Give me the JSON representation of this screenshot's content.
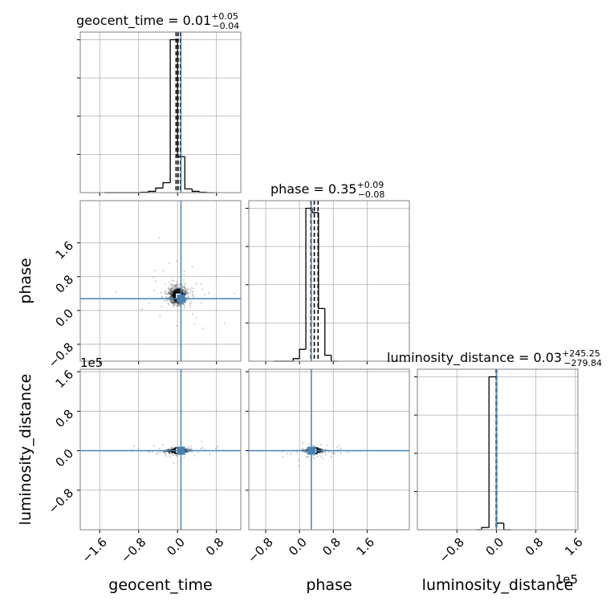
{
  "chart_data": {
    "type": "scatter",
    "subtype": "corner-plot",
    "truth_color": "#4682b4",
    "point_color": "#000000",
    "parameters": [
      {
        "name": "geocent_time",
        "xlabel": "geocent_time",
        "ylabel": "",
        "title": {
          "base": "geocent_time = 0.01",
          "plus": "+0.05",
          "minus": "−0.04"
        },
        "range": [
          -2.0,
          1.3
        ],
        "ticks": [
          -1.6,
          -0.8,
          0.0,
          0.8
        ],
        "tick_labels": [
          "−1.6",
          "−0.8",
          "0.0",
          "0.8"
        ],
        "truth": 0.07,
        "quantiles": [
          -0.03,
          0.01,
          0.06
        ],
        "scale_label": "",
        "hist": {
          "bin_edges": [
            -1.5,
            -1.35,
            -1.2,
            -1.05,
            -0.9,
            -0.75,
            -0.6,
            -0.45,
            -0.3,
            -0.15,
            0.0,
            0.15,
            0.3,
            0.45,
            0.6,
            0.75
          ],
          "counts": [
            0,
            0,
            0,
            0,
            0,
            1,
            3,
            11,
            24,
            370,
            87,
            9,
            3,
            1,
            0
          ]
        }
      },
      {
        "name": "phase",
        "xlabel": "phase",
        "ylabel": "phase",
        "title": {
          "base": "phase = 0.35",
          "plus": "+0.09",
          "minus": "−0.08"
        },
        "range": [
          -1.2,
          2.6
        ],
        "ticks": [
          -0.8,
          0.0,
          0.8,
          1.6
        ],
        "tick_labels": [
          "−0.8",
          "0.0",
          "0.8",
          "1.6"
        ],
        "truth": 0.28,
        "quantiles": [
          0.27,
          0.35,
          0.44
        ],
        "scale_label": "",
        "hist": {
          "bin_edges": [
            -0.6,
            -0.45,
            -0.3,
            -0.15,
            0.0,
            0.15,
            0.3,
            0.45,
            0.6,
            0.75,
            0.9
          ],
          "counts": [
            0,
            0,
            0,
            3,
            14,
            180,
            175,
            62,
            7,
            0
          ]
        }
      },
      {
        "name": "luminosity_distance",
        "xlabel": "luminosity_distance",
        "ylabel": "luminosity_distance",
        "title": {
          "base": "luminosity_distance = 0.03",
          "plus": "+245.25",
          "minus": "−279.84"
        },
        "range": [
          -1.6,
          1.65
        ],
        "ticks": [
          -0.8,
          0.0,
          0.8,
          1.6
        ],
        "tick_labels": [
          "−0.8",
          "0.0",
          "0.8",
          "1.6"
        ],
        "truth": 0.0,
        "quantiles": [
          -0.005,
          0.0,
          0.005
        ],
        "scale_label": "1e5",
        "hist": {
          "bin_edges": [
            -0.4,
            -0.3,
            -0.15,
            0.0,
            0.15,
            0.3
          ],
          "counts": [
            0,
            2,
            140,
            6,
            0
          ]
        }
      }
    ]
  }
}
